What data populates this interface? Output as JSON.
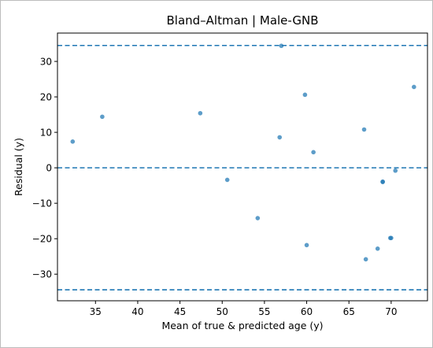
{
  "chart_data": {
    "type": "scatter",
    "title": "Bland–Altman | Male-GNB",
    "xlabel": "Mean of true & predicted age (y)",
    "ylabel": "Residual (y)",
    "xlim": [
      30.5,
      74.3
    ],
    "ylim": [
      -37.5,
      38.0
    ],
    "xticks": [
      35,
      40,
      45,
      50,
      55,
      60,
      65,
      70
    ],
    "yticks": [
      -30,
      -20,
      -10,
      0,
      10,
      20,
      30
    ],
    "xtick_labels": [
      "35",
      "40",
      "45",
      "50",
      "55",
      "60",
      "65",
      "70"
    ],
    "ytick_labels": [
      "−30",
      "−20",
      "−10",
      "0",
      "10",
      "20",
      "30"
    ],
    "grid": false,
    "reference_lines": [
      {
        "y": 34.5,
        "style": "dashed"
      },
      {
        "y": 0.0,
        "style": "dashed"
      },
      {
        "y": -34.4,
        "style": "dashed"
      }
    ],
    "points": [
      {
        "x": 32.3,
        "y": 7.4
      },
      {
        "x": 35.8,
        "y": 14.4
      },
      {
        "x": 47.4,
        "y": 15.4
      },
      {
        "x": 50.6,
        "y": -3.4
      },
      {
        "x": 54.2,
        "y": -14.2
      },
      {
        "x": 56.8,
        "y": 8.6
      },
      {
        "x": 57.0,
        "y": 34.4
      },
      {
        "x": 59.8,
        "y": 20.6
      },
      {
        "x": 60.0,
        "y": -21.8
      },
      {
        "x": 60.8,
        "y": 4.4
      },
      {
        "x": 66.8,
        "y": 10.8
      },
      {
        "x": 67.0,
        "y": -25.8
      },
      {
        "x": 68.4,
        "y": -22.8
      },
      {
        "x": 69.0,
        "y": -3.9
      },
      {
        "x": 69.0,
        "y": -4.0
      },
      {
        "x": 69.9,
        "y": -19.8
      },
      {
        "x": 70.0,
        "y": -19.8
      },
      {
        "x": 70.5,
        "y": -0.8
      },
      {
        "x": 72.7,
        "y": 22.8
      }
    ],
    "colors": {
      "point": "#1f77b4",
      "line": "#1f77b4",
      "axis": "#000000"
    }
  }
}
